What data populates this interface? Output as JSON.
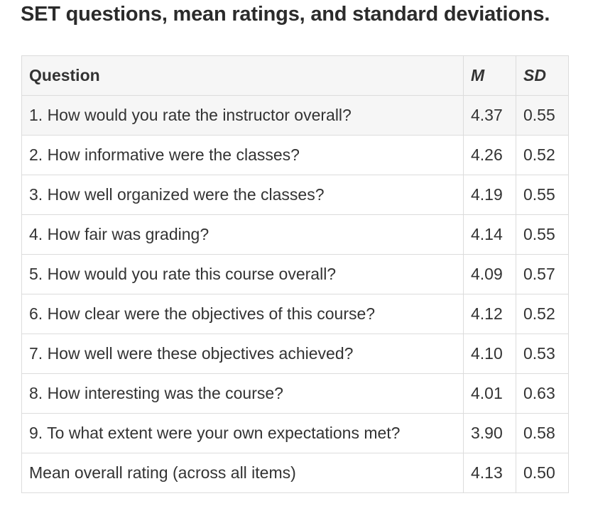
{
  "title": "SET questions, mean ratings, and standard deviations.",
  "table": {
    "headers": {
      "question": "Question",
      "mean": "M",
      "sd": "SD"
    },
    "rows": [
      {
        "question": "1. How would you rate the instructor overall?",
        "mean": "4.37",
        "sd": "0.55"
      },
      {
        "question": "2. How informative were the classes?",
        "mean": "4.26",
        "sd": "0.52"
      },
      {
        "question": "3. How well organized were the classes?",
        "mean": "4.19",
        "sd": "0.55"
      },
      {
        "question": "4. How fair was grading?",
        "mean": "4.14",
        "sd": "0.55"
      },
      {
        "question": "5. How would you rate this course overall?",
        "mean": "4.09",
        "sd": "0.57"
      },
      {
        "question": "6. How clear were the objectives of this course?",
        "mean": "4.12",
        "sd": "0.52"
      },
      {
        "question": "7. How well were these objectives achieved?",
        "mean": "4.10",
        "sd": "0.53"
      },
      {
        "question": "8. How interesting was the course?",
        "mean": "4.01",
        "sd": "0.63"
      },
      {
        "question": "9. To what extent were your own expectations met?",
        "mean": "3.90",
        "sd": "0.58"
      },
      {
        "question": "Mean overall rating (across all items)",
        "mean": "4.13",
        "sd": "0.50"
      }
    ]
  }
}
